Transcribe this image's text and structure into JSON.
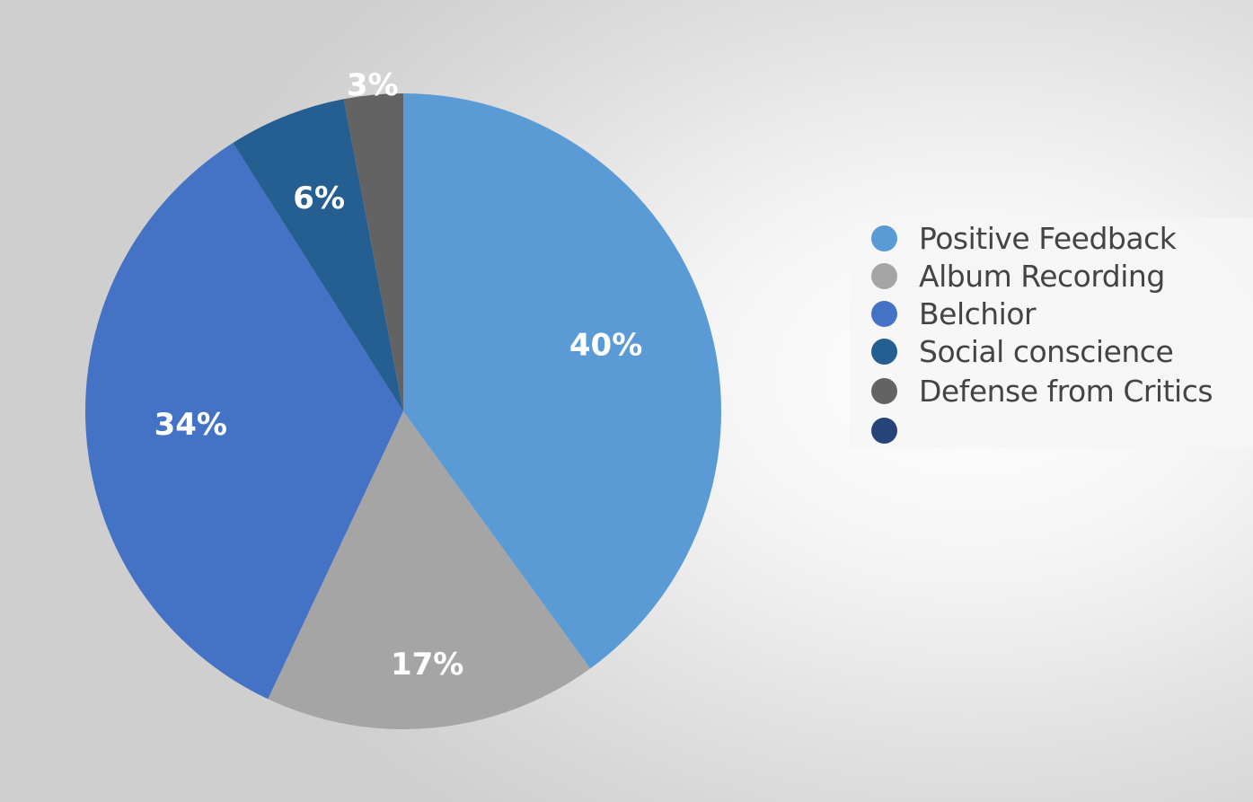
{
  "chart_data": {
    "type": "pie",
    "title": "",
    "slices": [
      {
        "name": "Positive Feedback",
        "value": 40,
        "label": "40%",
        "color": "#5b9bd5"
      },
      {
        "name": "Album Recording",
        "value": 17,
        "label": "17%",
        "color": "#a5a5a5"
      },
      {
        "name": "Belchior",
        "value": 34,
        "label": "34%",
        "color": "#4472c4"
      },
      {
        "name": "Social conscience",
        "value": 6,
        "label": "6%",
        "color": "#255e91"
      },
      {
        "name": "Defense from Critics",
        "value": 3,
        "label": "3%",
        "color": "#636363"
      }
    ],
    "legend": {
      "position": "right",
      "items": [
        {
          "label": "Positive Feedback",
          "color": "#5b9bd5"
        },
        {
          "label": "Album Recording",
          "color": "#a5a5a5"
        },
        {
          "label": "Belchior",
          "color": "#4472c4"
        },
        {
          "label": "Social conscience",
          "color": "#255e91"
        },
        {
          "label": "Defense from Critics",
          "color": "#636363"
        },
        {
          "label": "",
          "color": "#264478"
        }
      ]
    }
  }
}
